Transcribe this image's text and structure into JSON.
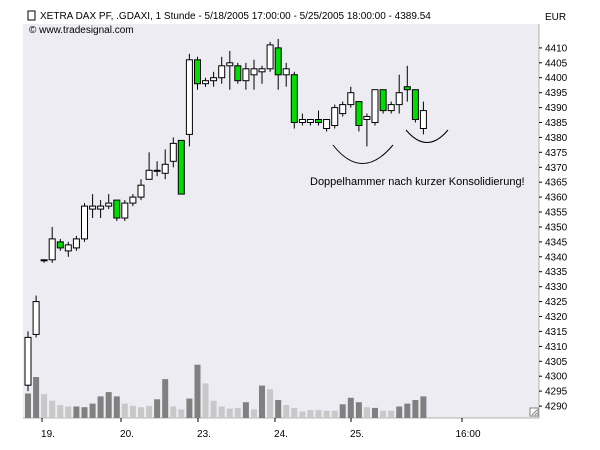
{
  "chart_data": {
    "type": "candlestick",
    "title": "XETRA DAX PF, .GDAXI, 1 Stunde - 5/18/2005 17:00:00 - 5/25/2005 18:00:00 - 4389.54",
    "source": "© www.tradesignal.com",
    "currency": "EUR",
    "ylim": [
      4286,
      4418
    ],
    "y_ticks": [
      4290,
      4295,
      4300,
      4305,
      4310,
      4315,
      4320,
      4325,
      4330,
      4335,
      4340,
      4345,
      4350,
      4355,
      4360,
      4365,
      4370,
      4375,
      4380,
      4385,
      4390,
      4395,
      4400,
      4405,
      4410
    ],
    "x_labels": [
      "19.",
      "20.",
      "23.",
      "24.",
      "25.",
      "16:00"
    ],
    "annotation": "Doppelhammer nach kurzer Konsolidierung!",
    "candles": [
      {
        "o": 4297,
        "h": 4315,
        "l": 4295,
        "c": 4313
      },
      {
        "o": 4314,
        "h": 4327,
        "l": 4313,
        "c": 4325
      },
      {
        "o": 4339,
        "h": 4339,
        "l": 4338,
        "c": 4339
      },
      {
        "o": 4339,
        "h": 4350,
        "l": 4338,
        "c": 4346
      },
      {
        "o": 4345,
        "h": 4346,
        "l": 4342,
        "c": 4343
      },
      {
        "o": 4342,
        "h": 4345,
        "l": 4340,
        "c": 4344
      },
      {
        "o": 4343,
        "h": 4347,
        "l": 4342,
        "c": 4346
      },
      {
        "o": 4346,
        "h": 4358,
        "l": 4345,
        "c": 4357
      },
      {
        "o": 4356,
        "h": 4361,
        "l": 4353,
        "c": 4357
      },
      {
        "o": 4356,
        "h": 4359,
        "l": 4353,
        "c": 4357
      },
      {
        "o": 4357,
        "h": 4361,
        "l": 4356,
        "c": 4358
      },
      {
        "o": 4359,
        "h": 4359,
        "l": 4352,
        "c": 4353
      },
      {
        "o": 4353,
        "h": 4359,
        "l": 4352,
        "c": 4358
      },
      {
        "o": 4358,
        "h": 4361,
        "l": 4357,
        "c": 4360
      },
      {
        "o": 4360,
        "h": 4366,
        "l": 4359,
        "c": 4364
      },
      {
        "o": 4366,
        "h": 4375,
        "l": 4366,
        "c": 4369
      },
      {
        "o": 4369,
        "h": 4372,
        "l": 4367,
        "c": 4369
      },
      {
        "o": 4368,
        "h": 4376,
        "l": 4366,
        "c": 4371
      },
      {
        "o": 4372,
        "h": 4380,
        "l": 4370,
        "c": 4378
      },
      {
        "o": 4379,
        "h": 4379,
        "l": 4361,
        "c": 4361
      },
      {
        "o": 4381,
        "h": 4408,
        "l": 4377,
        "c": 4406
      },
      {
        "o": 4406,
        "h": 4407,
        "l": 4396,
        "c": 4398
      },
      {
        "o": 4398,
        "h": 4400,
        "l": 4397,
        "c": 4399
      },
      {
        "o": 4399,
        "h": 4402,
        "l": 4397,
        "c": 4400
      },
      {
        "o": 4400,
        "h": 4407,
        "l": 4398,
        "c": 4404
      },
      {
        "o": 4404,
        "h": 4409,
        "l": 4396,
        "c": 4405
      },
      {
        "o": 4404,
        "h": 4405,
        "l": 4398,
        "c": 4399
      },
      {
        "o": 4399,
        "h": 4405,
        "l": 4396,
        "c": 4403
      },
      {
        "o": 4401,
        "h": 4406,
        "l": 4396,
        "c": 4403
      },
      {
        "o": 4402,
        "h": 4404,
        "l": 4398,
        "c": 4403
      },
      {
        "o": 4403,
        "h": 4412,
        "l": 4402,
        "c": 4411
      },
      {
        "o": 4410,
        "h": 4413,
        "l": 4396,
        "c": 4401
      },
      {
        "o": 4401,
        "h": 4405,
        "l": 4397,
        "c": 4403
      },
      {
        "o": 4401,
        "h": 4402,
        "l": 4383,
        "c": 4385
      },
      {
        "o": 4385,
        "h": 4388,
        "l": 4384,
        "c": 4386
      },
      {
        "o": 4385,
        "h": 4386,
        "l": 4384,
        "c": 4386
      },
      {
        "o": 4386,
        "h": 4389,
        "l": 4384,
        "c": 4385
      },
      {
        "o": 4383,
        "h": 4386,
        "l": 4382,
        "c": 4386
      },
      {
        "o": 4384,
        "h": 4391,
        "l": 4383,
        "c": 4390
      },
      {
        "o": 4388,
        "h": 4392,
        "l": 4387,
        "c": 4391
      },
      {
        "o": 4391,
        "h": 4397,
        "l": 4390,
        "c": 4395
      },
      {
        "o": 4392,
        "h": 4392,
        "l": 4382,
        "c": 4384
      },
      {
        "o": 4386,
        "h": 4388,
        "l": 4377,
        "c": 4387
      },
      {
        "o": 4385,
        "h": 4396,
        "l": 4384,
        "c": 4396
      },
      {
        "o": 4396,
        "h": 4396,
        "l": 4388,
        "c": 4389
      },
      {
        "o": 4389,
        "h": 4392,
        "l": 4388,
        "c": 4391
      },
      {
        "o": 4391,
        "h": 4401,
        "l": 4388,
        "c": 4395
      },
      {
        "o": 4397,
        "h": 4404,
        "l": 4392,
        "c": 4396
      },
      {
        "o": 4396,
        "h": 4396,
        "l": 4385,
        "c": 4386
      },
      {
        "o": 4383,
        "h": 4392,
        "l": 4381,
        "c": 4389
      }
    ],
    "volume": [
      {
        "v": 0.34,
        "tone": "dark"
      },
      {
        "v": 0.57,
        "tone": "dark"
      },
      {
        "v": 0.33,
        "tone": "light"
      },
      {
        "v": 0.24,
        "tone": "light"
      },
      {
        "v": 0.18,
        "tone": "light"
      },
      {
        "v": 0.16,
        "tone": "light"
      },
      {
        "v": 0.16,
        "tone": "dark"
      },
      {
        "v": 0.15,
        "tone": "dark"
      },
      {
        "v": 0.2,
        "tone": "dark"
      },
      {
        "v": 0.3,
        "tone": "dark"
      },
      {
        "v": 0.36,
        "tone": "dark"
      },
      {
        "v": 0.3,
        "tone": "dark"
      },
      {
        "v": 0.2,
        "tone": "light"
      },
      {
        "v": 0.17,
        "tone": "light"
      },
      {
        "v": 0.15,
        "tone": "light"
      },
      {
        "v": 0.17,
        "tone": "light"
      },
      {
        "v": 0.26,
        "tone": "dark"
      },
      {
        "v": 0.54,
        "tone": "dark"
      },
      {
        "v": 0.16,
        "tone": "light"
      },
      {
        "v": 0.12,
        "tone": "light"
      },
      {
        "v": 0.27,
        "tone": "dark"
      },
      {
        "v": 0.74,
        "tone": "dark"
      },
      {
        "v": 0.48,
        "tone": "light"
      },
      {
        "v": 0.24,
        "tone": "light"
      },
      {
        "v": 0.16,
        "tone": "light"
      },
      {
        "v": 0.13,
        "tone": "light"
      },
      {
        "v": 0.14,
        "tone": "light"
      },
      {
        "v": 0.22,
        "tone": "dark"
      },
      {
        "v": 0.12,
        "tone": "light"
      },
      {
        "v": 0.45,
        "tone": "dark"
      },
      {
        "v": 0.4,
        "tone": "light"
      },
      {
        "v": 0.25,
        "tone": "dark"
      },
      {
        "v": 0.18,
        "tone": "light"
      },
      {
        "v": 0.14,
        "tone": "light"
      },
      {
        "v": 0.09,
        "tone": "light"
      },
      {
        "v": 0.11,
        "tone": "light"
      },
      {
        "v": 0.11,
        "tone": "light"
      },
      {
        "v": 0.1,
        "tone": "light"
      },
      {
        "v": 0.1,
        "tone": "light"
      },
      {
        "v": 0.19,
        "tone": "dark"
      },
      {
        "v": 0.28,
        "tone": "dark"
      },
      {
        "v": 0.22,
        "tone": "dark"
      },
      {
        "v": 0.15,
        "tone": "light"
      },
      {
        "v": 0.14,
        "tone": "dark"
      },
      {
        "v": 0.1,
        "tone": "light"
      },
      {
        "v": 0.1,
        "tone": "light"
      },
      {
        "v": 0.16,
        "tone": "dark"
      },
      {
        "v": 0.2,
        "tone": "dark"
      },
      {
        "v": 0.25,
        "tone": "dark"
      },
      {
        "v": 0.3,
        "tone": "dark"
      }
    ],
    "colors": {
      "plot_bg": "#ececf2",
      "up_body": "#ffffff",
      "down_body": "#00dd00",
      "candle_outline": "#000000",
      "volume_dark": "#808080",
      "volume_light": "#c8c8c8",
      "annotation_line": "#000000"
    }
  }
}
